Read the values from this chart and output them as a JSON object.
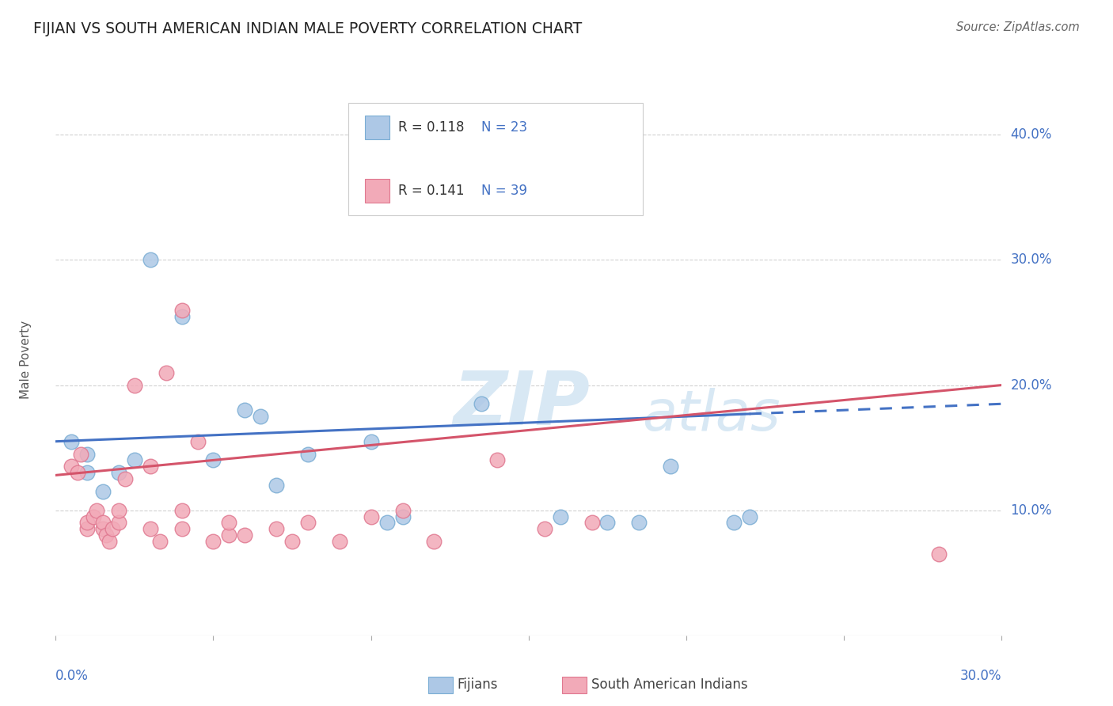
{
  "title": "FIJIAN VS SOUTH AMERICAN INDIAN MALE POVERTY CORRELATION CHART",
  "source_text": "Source: ZipAtlas.com",
  "ylabel": "Male Poverty",
  "xlim": [
    0.0,
    0.3
  ],
  "ylim": [
    0.0,
    0.44
  ],
  "yticks": [
    0.1,
    0.2,
    0.3,
    0.4
  ],
  "ytick_labels": [
    "10.0%",
    "20.0%",
    "30.0%",
    "40.0%"
  ],
  "xticks": [
    0.0,
    0.05,
    0.1,
    0.15,
    0.2,
    0.25,
    0.3
  ],
  "grid_color": "#cccccc",
  "background_color": "#ffffff",
  "fijian_color": "#adc8e6",
  "fijian_edge_color": "#7aadd4",
  "sa_color": "#f2aab8",
  "sa_edge_color": "#e07890",
  "fijian_R": 0.118,
  "fijian_N": 23,
  "sa_R": 0.141,
  "sa_N": 39,
  "fijian_line_color": "#4472c4",
  "sa_line_color": "#d4546a",
  "title_color": "#222222",
  "label_color": "#4472c4",
  "fijian_line_solid_end": 0.22,
  "fijians_x": [
    0.005,
    0.01,
    0.01,
    0.015,
    0.02,
    0.025,
    0.03,
    0.04,
    0.05,
    0.06,
    0.065,
    0.07,
    0.08,
    0.1,
    0.105,
    0.11,
    0.135,
    0.16,
    0.175,
    0.185,
    0.195,
    0.215,
    0.22
  ],
  "fijians_y": [
    0.155,
    0.145,
    0.13,
    0.115,
    0.13,
    0.14,
    0.3,
    0.255,
    0.14,
    0.18,
    0.175,
    0.12,
    0.145,
    0.155,
    0.09,
    0.095,
    0.185,
    0.095,
    0.09,
    0.09,
    0.135,
    0.09,
    0.095
  ],
  "sa_indians_x": [
    0.005,
    0.007,
    0.008,
    0.01,
    0.01,
    0.012,
    0.013,
    0.015,
    0.015,
    0.016,
    0.017,
    0.018,
    0.02,
    0.02,
    0.022,
    0.025,
    0.03,
    0.03,
    0.033,
    0.035,
    0.04,
    0.04,
    0.04,
    0.045,
    0.05,
    0.055,
    0.055,
    0.06,
    0.07,
    0.075,
    0.08,
    0.09,
    0.1,
    0.11,
    0.12,
    0.14,
    0.155,
    0.17,
    0.28
  ],
  "sa_indians_y": [
    0.135,
    0.13,
    0.145,
    0.085,
    0.09,
    0.095,
    0.1,
    0.085,
    0.09,
    0.08,
    0.075,
    0.085,
    0.09,
    0.1,
    0.125,
    0.2,
    0.135,
    0.085,
    0.075,
    0.21,
    0.26,
    0.1,
    0.085,
    0.155,
    0.075,
    0.08,
    0.09,
    0.08,
    0.085,
    0.075,
    0.09,
    0.075,
    0.095,
    0.1,
    0.075,
    0.14,
    0.085,
    0.09,
    0.065
  ],
  "watermark_zip": "ZIP",
  "watermark_atlas": "atlas",
  "watermark_color": "#d8e8f4"
}
